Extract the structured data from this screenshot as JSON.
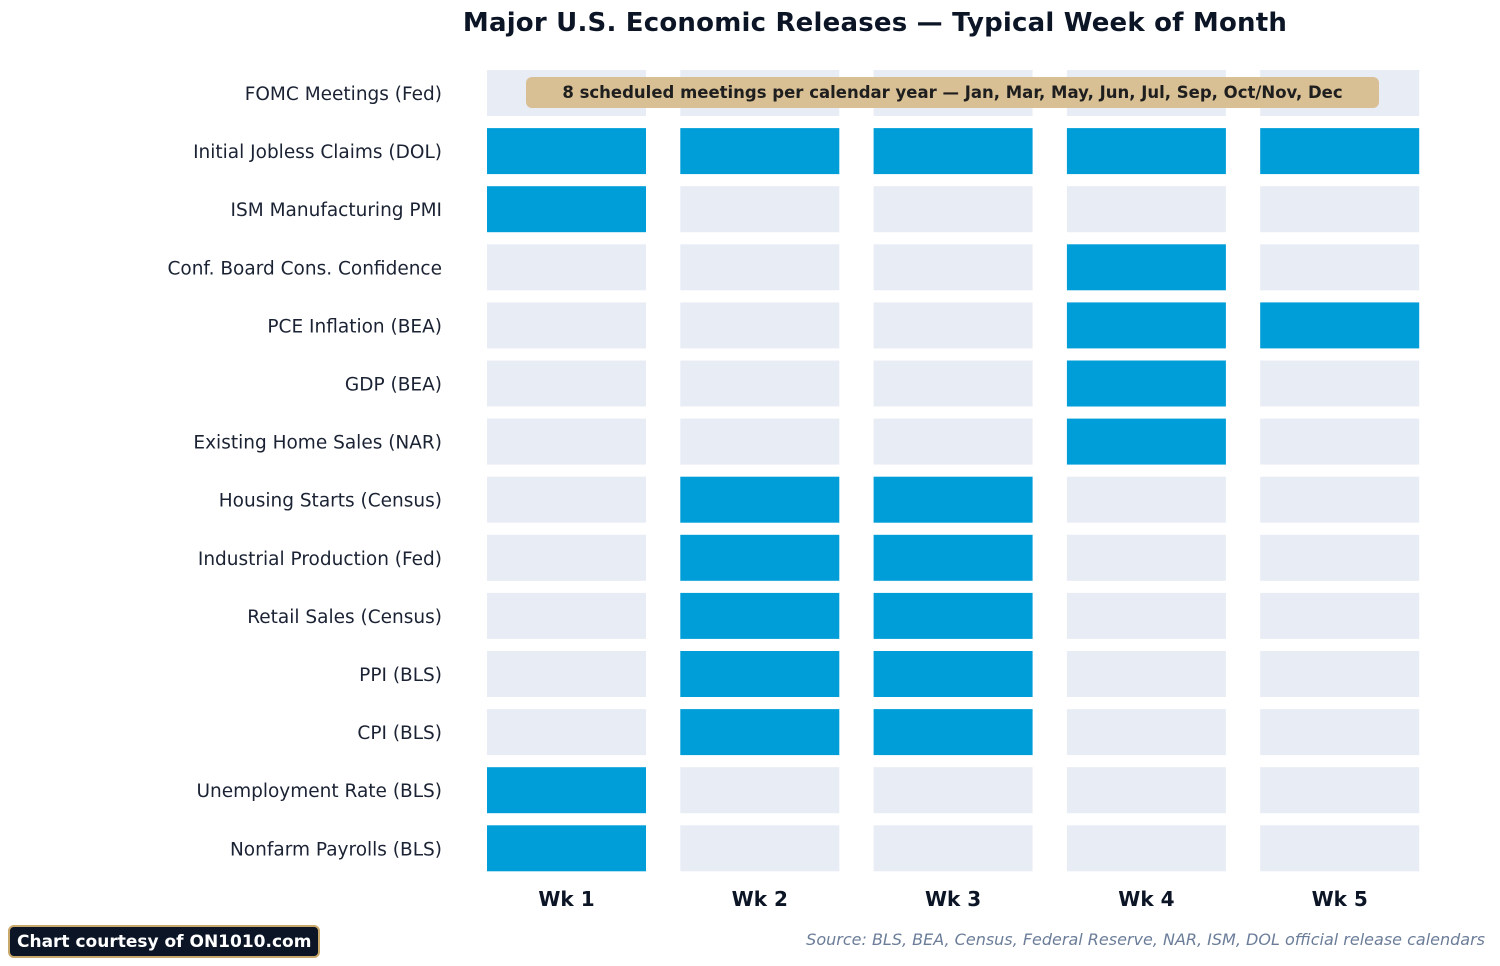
{
  "chart_data": {
    "type": "heatmap",
    "title": "Major U.S. Economic Releases — Typical Week of Month",
    "columns": [
      "Wk 1",
      "Wk 2",
      "Wk 3",
      "Wk 4",
      "Wk 5"
    ],
    "rows": [
      {
        "label": "FOMC Meetings (Fed)",
        "weeks": [
          0,
          0,
          0,
          0,
          0
        ]
      },
      {
        "label": "Initial Jobless Claims (DOL)",
        "weeks": [
          1,
          1,
          1,
          1,
          1
        ]
      },
      {
        "label": "ISM Manufacturing PMI",
        "weeks": [
          1,
          0,
          0,
          0,
          0
        ]
      },
      {
        "label": "Conf. Board Cons. Confidence",
        "weeks": [
          0,
          0,
          0,
          1,
          0
        ]
      },
      {
        "label": "PCE Inflation (BEA)",
        "weeks": [
          0,
          0,
          0,
          1,
          1
        ]
      },
      {
        "label": "GDP (BEA)",
        "weeks": [
          0,
          0,
          0,
          1,
          0
        ]
      },
      {
        "label": "Existing Home Sales (NAR)",
        "weeks": [
          0,
          0,
          0,
          1,
          0
        ]
      },
      {
        "label": "Housing Starts (Census)",
        "weeks": [
          0,
          1,
          1,
          0,
          0
        ]
      },
      {
        "label": "Industrial Production (Fed)",
        "weeks": [
          0,
          1,
          1,
          0,
          0
        ]
      },
      {
        "label": "Retail Sales (Census)",
        "weeks": [
          0,
          1,
          1,
          0,
          0
        ]
      },
      {
        "label": "PPI (BLS)",
        "weeks": [
          0,
          1,
          1,
          0,
          0
        ]
      },
      {
        "label": "CPI (BLS)",
        "weeks": [
          0,
          1,
          1,
          0,
          0
        ]
      },
      {
        "label": "Unemployment Rate (BLS)",
        "weeks": [
          1,
          0,
          0,
          0,
          0
        ]
      },
      {
        "label": "Nonfarm Payrolls (BLS)",
        "weeks": [
          1,
          0,
          0,
          0,
          0
        ]
      }
    ],
    "annotation": "8 scheduled meetings per calendar year — Jan, Mar, May, Jun, Jul, Sep, Oct/Nov, Dec",
    "colors": {
      "active": "#009ed8",
      "inactive": "#e8ecf4",
      "annotation_bg": "#d8bd8f"
    },
    "grid": false,
    "legend": "none"
  },
  "footer": {
    "credit": "Chart courtesy of ON1010.com",
    "source": "Source: BLS, BEA, Census, Federal Reserve, NAR, ISM, DOL official release calendars"
  }
}
